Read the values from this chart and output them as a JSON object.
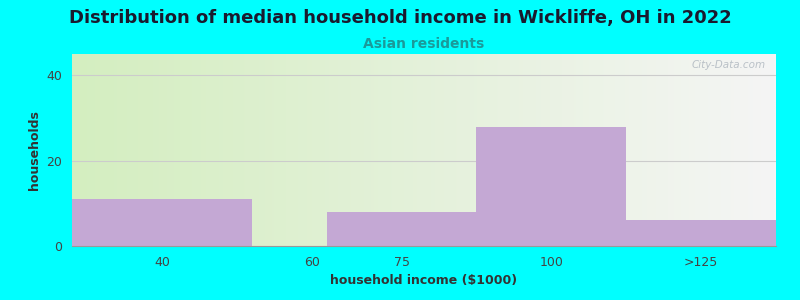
{
  "title": "Distribution of median household income in Wickliffe, OH in 2022",
  "subtitle": "Asian residents",
  "xlabel": "household income ($1000)",
  "ylabel": "households",
  "categories": [
    "40",
    "60",
    "75",
    "100",
    ">125"
  ],
  "values": [
    11,
    0,
    8,
    28,
    6
  ],
  "bar_color": "#c4a8d4",
  "background_color": "#00ffff",
  "plot_bg_gradient_left": "#d4eec0",
  "plot_bg_gradient_right": "#f5f5f5",
  "ylim": [
    0,
    45
  ],
  "yticks": [
    0,
    20,
    40
  ],
  "watermark": "City-Data.com",
  "title_fontsize": 13,
  "subtitle_fontsize": 10,
  "axis_label_fontsize": 9,
  "tick_fontsize": 9,
  "bin_edges": [
    20,
    50,
    62.5,
    87.5,
    112.5,
    137.5
  ],
  "tick_positions": [
    35,
    60,
    75,
    100,
    125
  ],
  "tick_labels": [
    "40",
    "60",
    "75",
    "100",
    ">125"
  ]
}
